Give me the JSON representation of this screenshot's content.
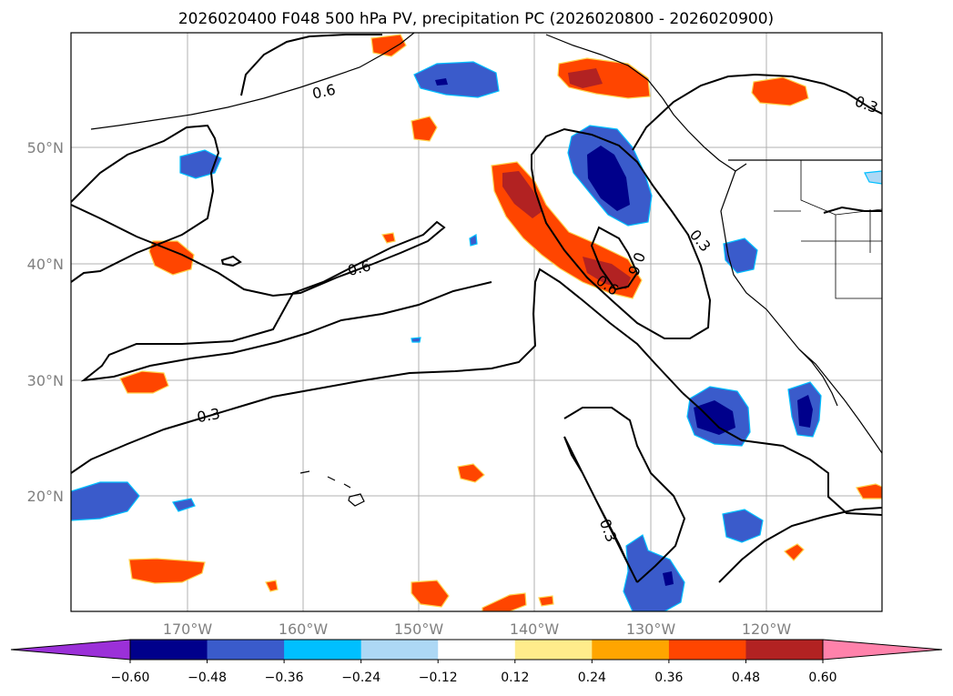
{
  "title": "2026020400 F048 500 hPa PV, precipitation PC (2026020800 - 2026020900)",
  "map": {
    "lon_ticks": [
      "170°W",
      "160°W",
      "150°W",
      "140°W",
      "130°W",
      "120°W"
    ],
    "lat_ticks": [
      "50°N",
      "40°N",
      "30°N",
      "20°N"
    ],
    "grid": true
  },
  "contour_labels": [
    "0.6",
    "0.6",
    "0.3",
    "0.3",
    "0.6",
    "0.6",
    "0.3",
    "0.3"
  ],
  "colorbar": {
    "ticks": [
      "−0.60",
      "−0.48",
      "−0.36",
      "−0.24",
      "−0.12",
      "0.12",
      "0.24",
      "0.36",
      "0.48",
      "0.60"
    ],
    "under_color": "#9b30d8",
    "colors": [
      "#00008b",
      "#3a5bcb",
      "#00bfff",
      "#add8f5",
      "#ffffff",
      "#ffec8b",
      "#ffa500",
      "#ff4500",
      "#b22222"
    ],
    "over_color": "#ff82ab"
  },
  "colors": {
    "positive_strong": "#b22222",
    "positive": "#ff4500",
    "negative": "#3a5bcb",
    "negative_strong": "#00008b"
  }
}
